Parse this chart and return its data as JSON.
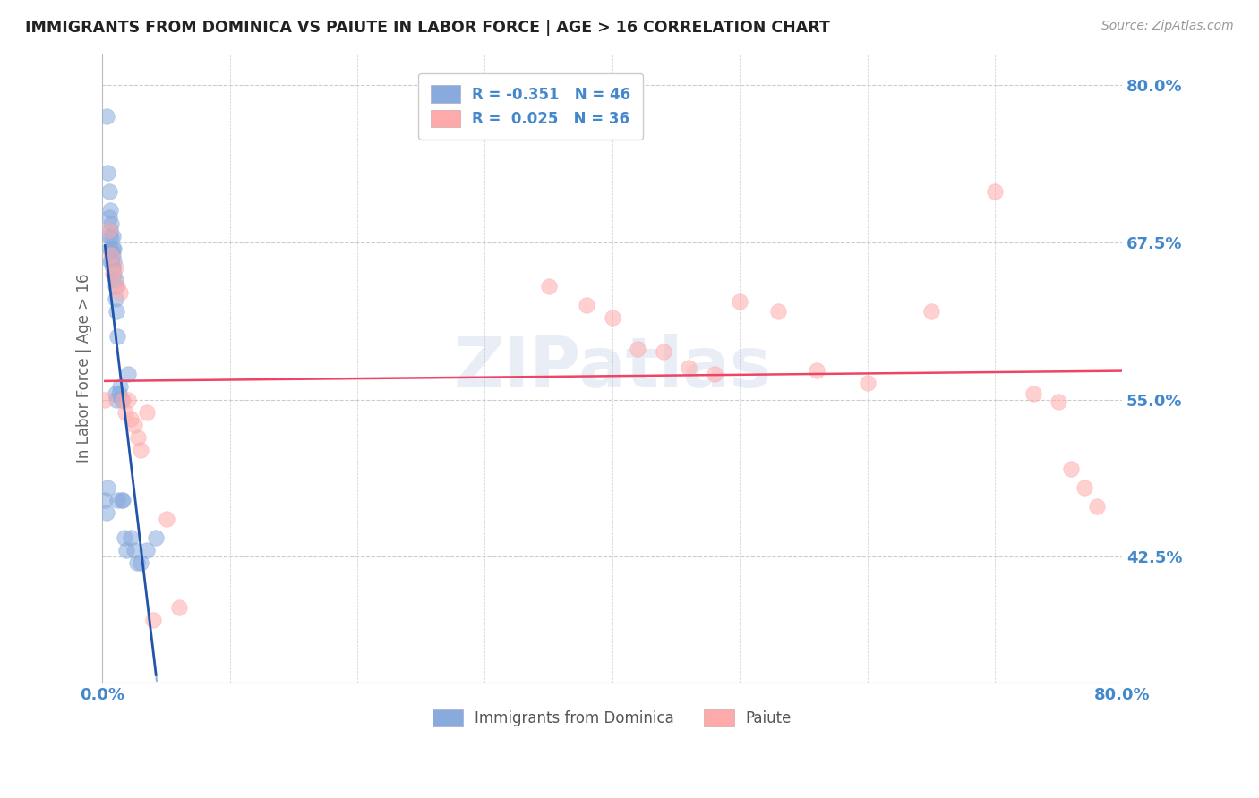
{
  "title": "IMMIGRANTS FROM DOMINICA VS PAIUTE IN LABOR FORCE | AGE > 16 CORRELATION CHART",
  "source": "Source: ZipAtlas.com",
  "ylabel": "In Labor Force | Age > 16",
  "xlim": [
    0.0,
    0.8
  ],
  "ylim": [
    0.325,
    0.825
  ],
  "yticks": [
    0.425,
    0.55,
    0.675,
    0.8
  ],
  "ytick_labels": [
    "42.5%",
    "55.0%",
    "67.5%",
    "80.0%"
  ],
  "xticks": [
    0.0,
    0.1,
    0.2,
    0.3,
    0.4,
    0.5,
    0.6,
    0.7,
    0.8
  ],
  "xtick_labels": [
    "0.0%",
    "",
    "",
    "",
    "",
    "",
    "",
    "",
    "80.0%"
  ],
  "blue_color": "#88AADD",
  "pink_color": "#FFAAAA",
  "blue_line_color": "#2255AA",
  "pink_line_color": "#EE4466",
  "axis_label_color": "#4488CC",
  "title_color": "#222222",
  "grid_color": "#CCCCCC",
  "watermark": "ZIPatlas",
  "blue_x": [
    0.003,
    0.004,
    0.005,
    0.005,
    0.005,
    0.006,
    0.006,
    0.006,
    0.007,
    0.007,
    0.007,
    0.007,
    0.008,
    0.008,
    0.008,
    0.008,
    0.009,
    0.009,
    0.009,
    0.01,
    0.01,
    0.01,
    0.011,
    0.011,
    0.012,
    0.012,
    0.013,
    0.014,
    0.015,
    0.015,
    0.016,
    0.017,
    0.019,
    0.02,
    0.022,
    0.025,
    0.027,
    0.03,
    0.035,
    0.042,
    0.002,
    0.003,
    0.004,
    0.006,
    0.008,
    0.01
  ],
  "blue_y": [
    0.775,
    0.73,
    0.715,
    0.695,
    0.68,
    0.7,
    0.685,
    0.67,
    0.69,
    0.678,
    0.668,
    0.66,
    0.68,
    0.67,
    0.665,
    0.655,
    0.67,
    0.66,
    0.65,
    0.64,
    0.63,
    0.555,
    0.62,
    0.55,
    0.6,
    0.47,
    0.555,
    0.56,
    0.55,
    0.47,
    0.47,
    0.44,
    0.43,
    0.57,
    0.44,
    0.43,
    0.42,
    0.42,
    0.43,
    0.44,
    0.47,
    0.46,
    0.48,
    0.66,
    0.655,
    0.645
  ],
  "pink_x": [
    0.002,
    0.005,
    0.007,
    0.008,
    0.01,
    0.012,
    0.014,
    0.016,
    0.018,
    0.02,
    0.022,
    0.025,
    0.028,
    0.03,
    0.035,
    0.04,
    0.05,
    0.06,
    0.35,
    0.38,
    0.4,
    0.42,
    0.44,
    0.46,
    0.48,
    0.5,
    0.53,
    0.56,
    0.6,
    0.65,
    0.7,
    0.73,
    0.75,
    0.76,
    0.77,
    0.78
  ],
  "pink_y": [
    0.55,
    0.685,
    0.665,
    0.65,
    0.655,
    0.64,
    0.635,
    0.55,
    0.54,
    0.55,
    0.535,
    0.53,
    0.52,
    0.51,
    0.54,
    0.375,
    0.455,
    0.385,
    0.64,
    0.625,
    0.615,
    0.59,
    0.588,
    0.575,
    0.57,
    0.628,
    0.62,
    0.573,
    0.563,
    0.62,
    0.715,
    0.555,
    0.548,
    0.495,
    0.48,
    0.465
  ],
  "legend_label_dominica": "Immigrants from Dominica",
  "legend_label_paiute": "Paiute"
}
